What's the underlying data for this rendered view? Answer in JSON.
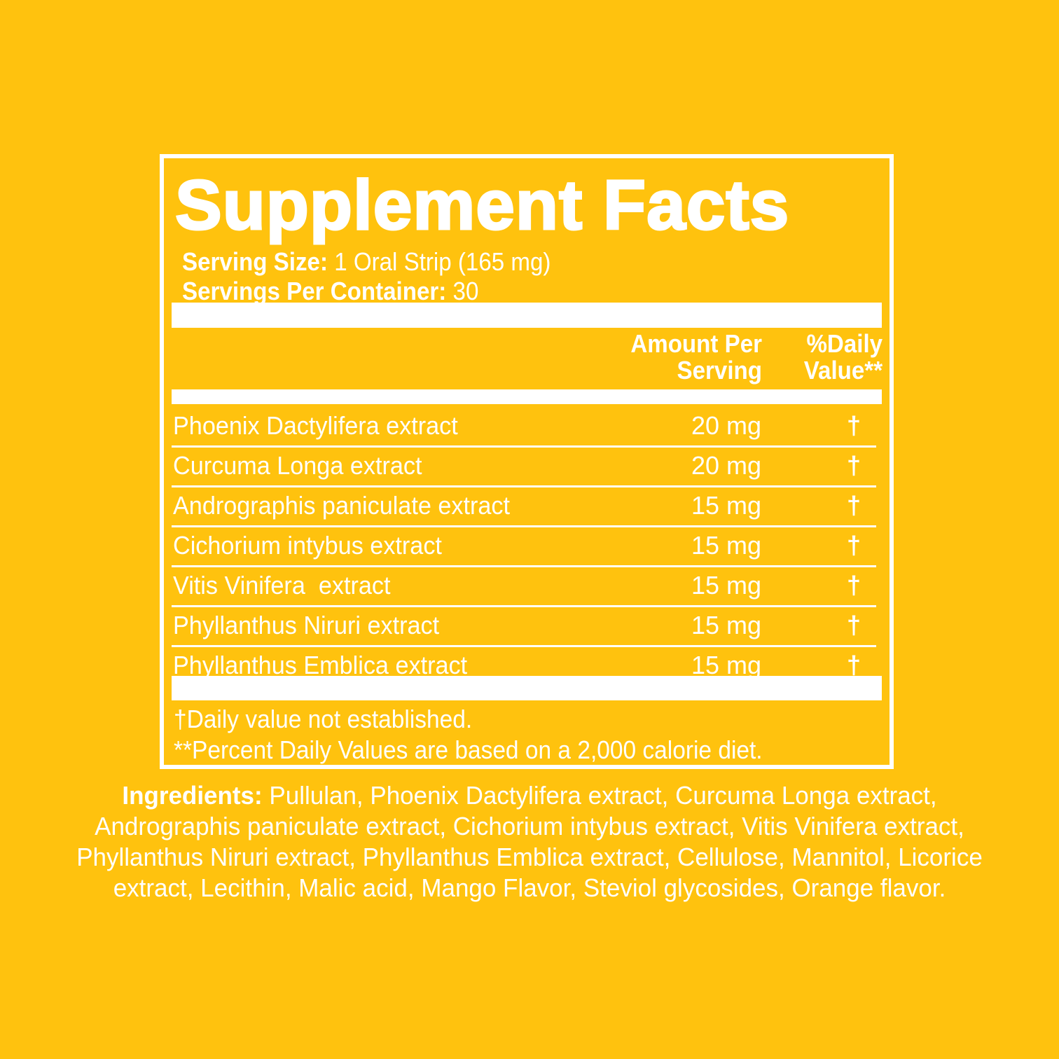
{
  "title": "Supplement Facts",
  "serving_size_label": "Serving Size:",
  "serving_size_value": "1 Oral Strip (165 mg)",
  "servings_label": "Servings Per Container:",
  "servings_value": "30",
  "header": {
    "amount_line1": "Amount Per",
    "amount_line2": "Serving",
    "dv_line1": "%Daily",
    "dv_line2": "Value**"
  },
  "rows": [
    {
      "name": "Phoenix Dactylifera extract",
      "amount": "20 mg",
      "dv": "†"
    },
    {
      "name": "Curcuma Longa extract",
      "amount": "20 mg",
      "dv": "†"
    },
    {
      "name": "Andrographis paniculate extract",
      "amount": "15 mg",
      "dv": "†"
    },
    {
      "name": "Cichorium intybus extract",
      "amount": "15 mg",
      "dv": "†"
    },
    {
      "name": "Vitis Vinifera  extract",
      "amount": "15 mg",
      "dv": "†"
    },
    {
      "name": "Phyllanthus Niruri extract",
      "amount": "15 mg",
      "dv": "†"
    },
    {
      "name": "Phyllanthus Emblica extract",
      "amount": "15 mg",
      "dv": "†"
    }
  ],
  "footnote1": "†Daily value not established.",
  "footnote2": "**Percent Daily Values are based on a 2,000 calorie diet.",
  "ingredients": {
    "label": "Ingredients:",
    "line1": " Pullulan, Phoenix Dactylifera extract, Curcuma Longa extract,",
    "line2": "Andrographis paniculate extract, Cichorium intybus extract, Vitis Vinifera extract,",
    "line3": "Phyllanthus Niruri extract, Phyllanthus Emblica extract, Cellulose, Mannitol, Licorice",
    "line4": "extract, Lecithin, Malic acid, Mango Flavor, Steviol glycosides, Orange flavor."
  },
  "colors": {
    "background": "#FFC20E",
    "text": "#FFFFFF"
  }
}
